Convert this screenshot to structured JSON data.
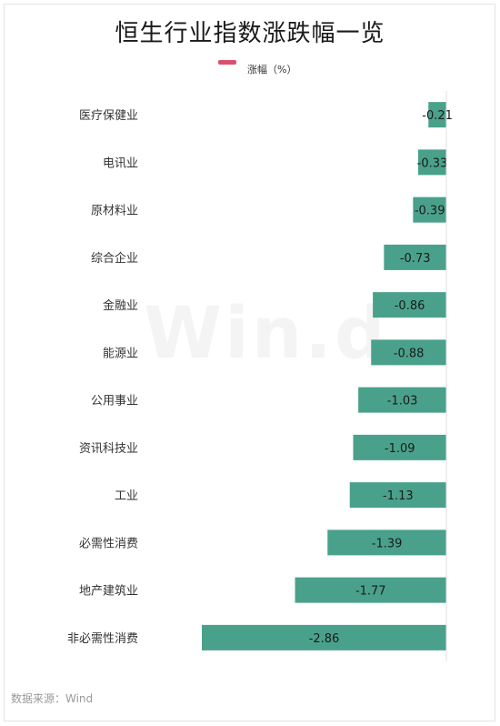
{
  "title": "恒生行业指数涨跌幅一览",
  "watermark": "Win.d",
  "source": "数据来源：Wind",
  "colors": {
    "bar": "#4aa18b",
    "legend": "#d9506e",
    "axis": "#e0e0e0"
  },
  "chart_data": {
    "type": "bar",
    "orientation": "horizontal",
    "title": "恒生行业指数涨跌幅一览",
    "legend": "涨幅（%）",
    "categories": [
      "医疗保健业",
      "电讯业",
      "原材料业",
      "综合企业",
      "金融业",
      "能源业",
      "公用事业",
      "资讯科技业",
      "工业",
      "必需性消费",
      "地产建筑业",
      "非必需性消费"
    ],
    "series": [
      {
        "name": "涨幅（%）",
        "values": [
          -0.21,
          -0.33,
          -0.39,
          -0.73,
          -0.86,
          -0.88,
          -1.03,
          -1.09,
          -1.13,
          -1.39,
          -1.77,
          -2.86
        ]
      }
    ],
    "data_labels": [
      "-0.21",
      "-0.33",
      "-0.39",
      "-0.73",
      "-0.86",
      "-0.88",
      "-1.03",
      "-1.09",
      "-1.13",
      "-1.39",
      "-1.77",
      "-2.86"
    ],
    "xlim": [
      -2.86,
      0
    ],
    "grid": false
  }
}
